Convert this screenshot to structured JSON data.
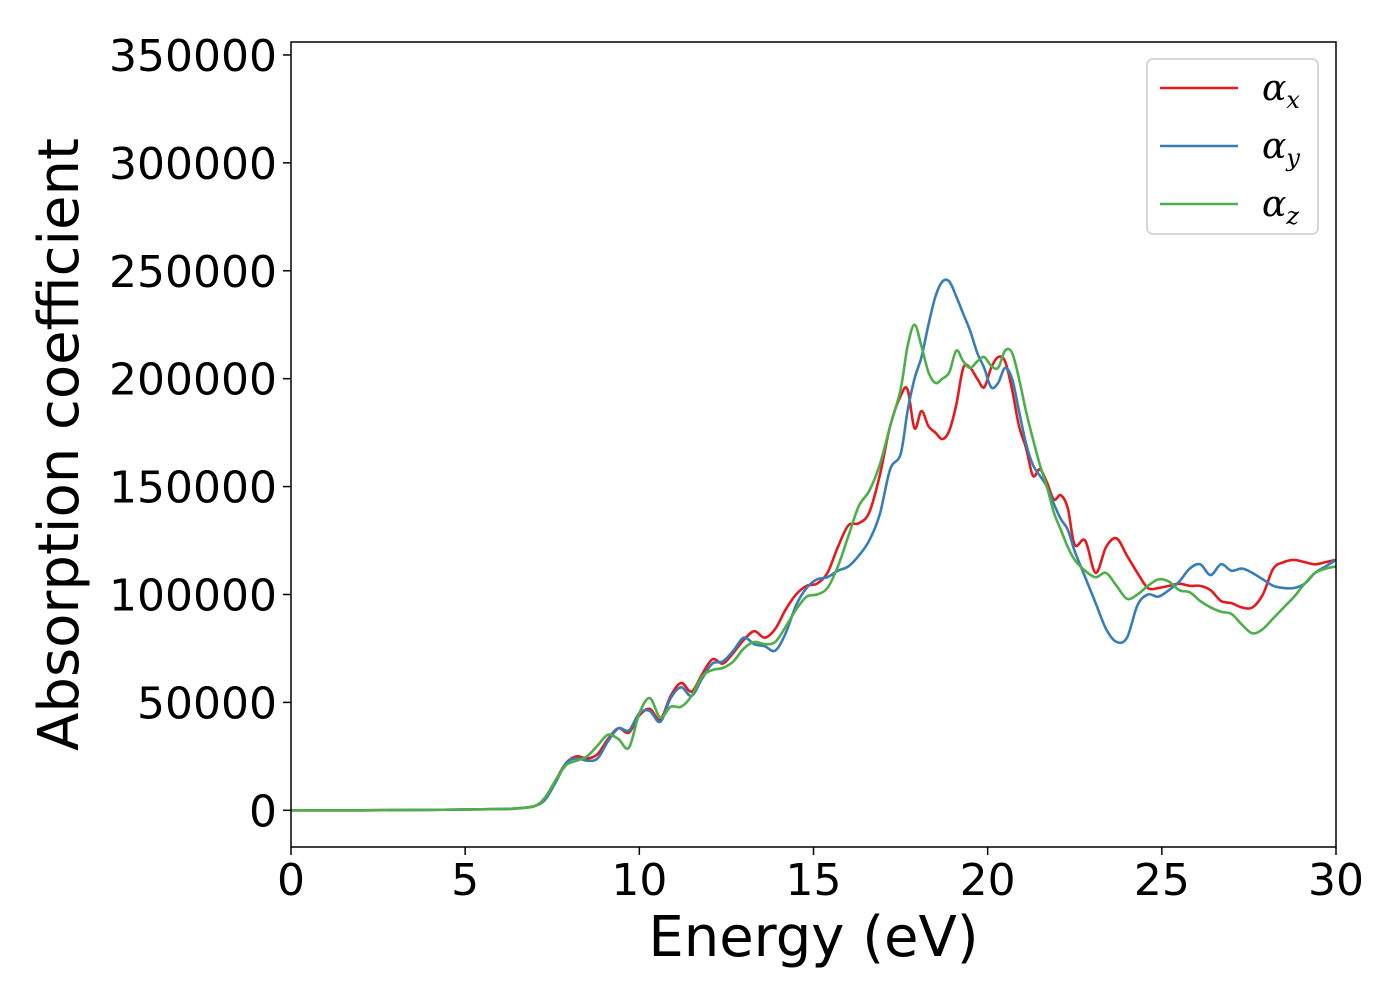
{
  "chart_data": {
    "type": "line",
    "title": "",
    "xlabel": "Energy (eV)",
    "ylabel": "Absorption coefficient",
    "xlim": [
      0,
      30
    ],
    "ylim": [
      -17000,
      356000
    ],
    "xticks": [
      0,
      5,
      10,
      15,
      20,
      25,
      30
    ],
    "xtick_labels": [
      "0",
      "5",
      "10",
      "15",
      "20",
      "25",
      "30"
    ],
    "yticks": [
      0,
      50000,
      100000,
      150000,
      200000,
      250000,
      300000,
      350000
    ],
    "ytick_labels": [
      "0",
      "50000",
      "100000",
      "150000",
      "200000",
      "250000",
      "300000",
      "350000"
    ],
    "grid": false,
    "legend_position": "top-right",
    "series": [
      {
        "name": "α_x",
        "legend_symbol": "α",
        "legend_subscript": "x",
        "color": "#e41a1c",
        "x": [
          0,
          2,
          4,
          6,
          6.5,
          7,
          7.3,
          7.6,
          7.9,
          8.2,
          8.5,
          8.8,
          9.1,
          9.4,
          9.7,
          10.0,
          10.3,
          10.6,
          10.9,
          11.2,
          11.5,
          11.8,
          12.1,
          12.4,
          12.7,
          13.0,
          13.3,
          13.6,
          13.9,
          14.2,
          14.5,
          14.8,
          15.1,
          15.4,
          15.7,
          16.0,
          16.3,
          16.6,
          16.9,
          17.2,
          17.5,
          17.7,
          17.9,
          18.1,
          18.3,
          18.5,
          18.7,
          18.9,
          19.1,
          19.3,
          19.5,
          19.7,
          19.9,
          20.1,
          20.3,
          20.5,
          20.7,
          20.9,
          21.1,
          21.3,
          21.5,
          21.7,
          21.9,
          22.1,
          22.3,
          22.5,
          22.8,
          23.1,
          23.4,
          23.7,
          24.0,
          24.3,
          24.6,
          24.9,
          25.2,
          25.5,
          25.8,
          26.1,
          26.4,
          26.7,
          27.0,
          27.3,
          27.6,
          27.9,
          28.2,
          28.5,
          28.8,
          29.1,
          29.4,
          29.7,
          30.0
        ],
        "y": [
          0,
          0,
          200,
          600,
          900,
          2000,
          6000,
          14000,
          22000,
          25000,
          24000,
          26000,
          33000,
          38000,
          36000,
          44000,
          47000,
          42000,
          53000,
          59000,
          55000,
          63000,
          70000,
          68000,
          73000,
          79000,
          83000,
          80000,
          84000,
          93000,
          100000,
          104000,
          105000,
          110000,
          122000,
          132000,
          133000,
          138000,
          155000,
          178000,
          192000,
          195000,
          177000,
          185000,
          178000,
          175000,
          172000,
          176000,
          188000,
          205000,
          205000,
          200000,
          196000,
          205000,
          210000,
          208000,
          195000,
          178000,
          168000,
          155000,
          158000,
          152000,
          144000,
          146000,
          140000,
          123000,
          125000,
          110000,
          122000,
          126000,
          118000,
          110000,
          103000,
          103000,
          104000,
          105000,
          104000,
          104000,
          102000,
          97000,
          96000,
          94000,
          94000,
          100000,
          112000,
          115000,
          116000,
          115000,
          114000,
          115000,
          116000
        ]
      },
      {
        "name": "α_y",
        "legend_symbol": "α",
        "legend_subscript": "y",
        "color": "#377eb8",
        "x": [
          0,
          2,
          4,
          6,
          6.5,
          7,
          7.3,
          7.6,
          7.9,
          8.2,
          8.5,
          8.8,
          9.1,
          9.4,
          9.7,
          10.0,
          10.3,
          10.6,
          10.9,
          11.2,
          11.5,
          11.8,
          12.1,
          12.4,
          12.7,
          13.0,
          13.3,
          13.6,
          13.9,
          14.2,
          14.5,
          14.8,
          15.1,
          15.4,
          15.7,
          16.0,
          16.3,
          16.6,
          16.9,
          17.2,
          17.5,
          17.7,
          17.9,
          18.1,
          18.3,
          18.5,
          18.7,
          18.9,
          19.1,
          19.3,
          19.5,
          19.7,
          19.9,
          20.1,
          20.3,
          20.5,
          20.7,
          20.9,
          21.1,
          21.3,
          21.5,
          21.7,
          21.9,
          22.1,
          22.3,
          22.5,
          22.8,
          23.1,
          23.4,
          23.7,
          24.0,
          24.3,
          24.6,
          24.9,
          25.2,
          25.5,
          25.8,
          26.1,
          26.4,
          26.7,
          27.0,
          27.3,
          27.6,
          27.9,
          28.2,
          28.5,
          28.8,
          29.1,
          29.4,
          29.7,
          30.0
        ],
        "y": [
          0,
          0,
          200,
          600,
          900,
          2000,
          5000,
          13000,
          22000,
          24000,
          23000,
          24000,
          32000,
          38000,
          37000,
          45000,
          46000,
          41000,
          52000,
          57000,
          53000,
          61000,
          68000,
          69000,
          74000,
          80000,
          77000,
          76000,
          74000,
          82000,
          95000,
          103000,
          107000,
          108000,
          111000,
          113000,
          118000,
          125000,
          137000,
          158000,
          165000,
          185000,
          200000,
          210000,
          225000,
          238000,
          245000,
          245000,
          238000,
          230000,
          222000,
          212000,
          205000,
          196000,
          198000,
          205000,
          200000,
          185000,
          170000,
          160000,
          155000,
          150000,
          142000,
          135000,
          130000,
          120000,
          108000,
          96000,
          84000,
          78000,
          80000,
          95000,
          100000,
          99000,
          102000,
          106000,
          112000,
          114000,
          109000,
          114000,
          111000,
          112000,
          110000,
          107000,
          104000,
          103000,
          103000,
          105000,
          110000,
          113000,
          116000
        ]
      },
      {
        "name": "α_z",
        "legend_symbol": "α",
        "legend_subscript": "z",
        "color": "#4daf4a",
        "x": [
          0,
          2,
          4,
          6,
          6.5,
          7,
          7.3,
          7.6,
          7.9,
          8.2,
          8.5,
          8.8,
          9.1,
          9.4,
          9.7,
          10.0,
          10.3,
          10.6,
          10.9,
          11.2,
          11.5,
          11.8,
          12.1,
          12.4,
          12.7,
          13.0,
          13.3,
          13.6,
          13.9,
          14.2,
          14.5,
          14.8,
          15.1,
          15.4,
          15.7,
          16.0,
          16.3,
          16.6,
          16.9,
          17.2,
          17.5,
          17.7,
          17.9,
          18.1,
          18.3,
          18.5,
          18.7,
          18.9,
          19.1,
          19.3,
          19.5,
          19.7,
          19.9,
          20.1,
          20.3,
          20.5,
          20.7,
          20.9,
          21.1,
          21.3,
          21.5,
          21.7,
          21.9,
          22.1,
          22.3,
          22.5,
          22.8,
          23.1,
          23.4,
          23.7,
          24.0,
          24.3,
          24.6,
          24.9,
          25.2,
          25.5,
          25.8,
          26.1,
          26.4,
          26.7,
          27.0,
          27.3,
          27.6,
          27.9,
          28.2,
          28.5,
          28.8,
          29.1,
          29.4,
          29.7,
          30.0
        ],
        "y": [
          0,
          0,
          200,
          600,
          900,
          2000,
          6000,
          14000,
          21000,
          23000,
          25000,
          30000,
          35000,
          33000,
          29000,
          45000,
          52000,
          43000,
          48000,
          48000,
          53000,
          62000,
          65000,
          66000,
          69000,
          75000,
          78000,
          77000,
          78000,
          85000,
          93000,
          99000,
          100000,
          103000,
          113000,
          127000,
          141000,
          148000,
          160000,
          178000,
          195000,
          215000,
          225000,
          215000,
          203000,
          198000,
          200000,
          203000,
          213000,
          208000,
          205000,
          208000,
          210000,
          206000,
          205000,
          213000,
          212000,
          200000,
          185000,
          172000,
          160000,
          150000,
          138000,
          130000,
          122000,
          116000,
          111000,
          108000,
          110000,
          104000,
          98000,
          100000,
          104000,
          107000,
          106000,
          102000,
          101000,
          97000,
          94000,
          92000,
          91000,
          86000,
          82000,
          84000,
          89000,
          94000,
          99000,
          105000,
          110000,
          112000,
          113000
        ]
      }
    ]
  }
}
